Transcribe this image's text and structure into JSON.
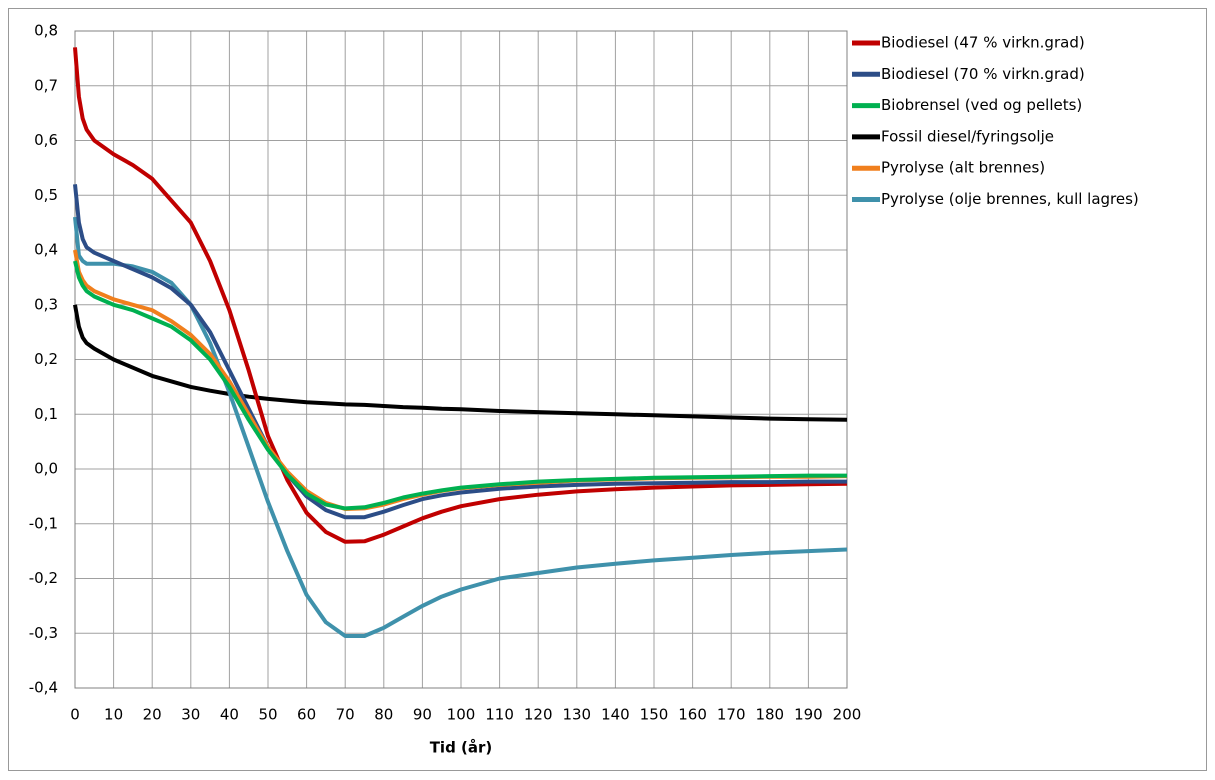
{
  "chart_data": {
    "type": "line",
    "x_label": "Tid (år)",
    "x": [
      0,
      1,
      2,
      3,
      5,
      10,
      15,
      20,
      25,
      30,
      35,
      40,
      45,
      50,
      55,
      60,
      65,
      70,
      75,
      80,
      85,
      90,
      95,
      100,
      110,
      120,
      130,
      140,
      150,
      160,
      170,
      180,
      190,
      200
    ],
    "xlim": [
      0,
      200
    ],
    "xticks": [
      0,
      10,
      20,
      30,
      40,
      50,
      60,
      70,
      80,
      90,
      100,
      110,
      120,
      130,
      140,
      150,
      160,
      170,
      180,
      190,
      200
    ],
    "ylim": [
      -0.4,
      0.8
    ],
    "yticks": [
      {
        "value": -0.4,
        "label": "-0,4"
      },
      {
        "value": -0.3,
        "label": "-0,3"
      },
      {
        "value": -0.2,
        "label": "-0,2"
      },
      {
        "value": -0.1,
        "label": "-0,1"
      },
      {
        "value": 0,
        "label": "0,0"
      },
      {
        "value": 0.1,
        "label": "0,1"
      },
      {
        "value": 0.2,
        "label": "0,2"
      },
      {
        "value": 0.3,
        "label": "0,3"
      },
      {
        "value": 0.4,
        "label": "0,4"
      },
      {
        "value": 0.5,
        "label": "0,5"
      },
      {
        "value": 0.6,
        "label": "0,6"
      },
      {
        "value": 0.7,
        "label": "0,7"
      },
      {
        "value": 0.8,
        "label": "0,8"
      }
    ],
    "grid": true,
    "legend": "right",
    "series": [
      {
        "name": "Biodiesel (47 % virkn.grad)",
        "color": "#c00000",
        "values": [
          0.77,
          0.68,
          0.64,
          0.62,
          0.6,
          0.575,
          0.555,
          0.53,
          0.49,
          0.45,
          0.38,
          0.29,
          0.18,
          0.06,
          -0.02,
          -0.08,
          -0.115,
          -0.133,
          -0.132,
          -0.12,
          -0.105,
          -0.09,
          -0.078,
          -0.068,
          -0.055,
          -0.047,
          -0.041,
          -0.037,
          -0.034,
          -0.032,
          -0.03,
          -0.029,
          -0.028,
          -0.027
        ]
      },
      {
        "name": "Biodiesel (70 % virkn.grad)",
        "color": "#2c4d87",
        "values": [
          0.52,
          0.45,
          0.42,
          0.405,
          0.395,
          0.38,
          0.365,
          0.35,
          0.33,
          0.3,
          0.25,
          0.18,
          0.11,
          0.04,
          -0.01,
          -0.05,
          -0.075,
          -0.088,
          -0.088,
          -0.078,
          -0.066,
          -0.055,
          -0.048,
          -0.043,
          -0.036,
          -0.032,
          -0.029,
          -0.027,
          -0.026,
          -0.025,
          -0.024,
          -0.024,
          -0.023,
          -0.023
        ]
      },
      {
        "name": "Biobrensel (ved og pellets)",
        "color": "#00b050",
        "values": [
          0.38,
          0.35,
          0.335,
          0.325,
          0.315,
          0.3,
          0.29,
          0.275,
          0.26,
          0.235,
          0.2,
          0.15,
          0.09,
          0.035,
          -0.01,
          -0.045,
          -0.065,
          -0.072,
          -0.07,
          -0.062,
          -0.052,
          -0.045,
          -0.039,
          -0.034,
          -0.028,
          -0.023,
          -0.02,
          -0.018,
          -0.016,
          -0.015,
          -0.014,
          -0.013,
          -0.012,
          -0.012
        ]
      },
      {
        "name": "Fossil diesel/fyringsolje",
        "color": "#000000",
        "values": [
          0.3,
          0.26,
          0.24,
          0.23,
          0.22,
          0.2,
          0.185,
          0.17,
          0.16,
          0.15,
          0.143,
          0.137,
          0.132,
          0.128,
          0.125,
          0.122,
          0.12,
          0.118,
          0.117,
          0.115,
          0.113,
          0.112,
          0.11,
          0.109,
          0.106,
          0.104,
          0.102,
          0.1,
          0.098,
          0.096,
          0.094,
          0.092,
          0.091,
          0.09
        ]
      },
      {
        "name": "Pyrolyse (alt brennes)",
        "color": "#f07f1d",
        "values": [
          0.4,
          0.36,
          0.345,
          0.335,
          0.325,
          0.31,
          0.3,
          0.29,
          0.27,
          0.245,
          0.21,
          0.16,
          0.1,
          0.04,
          -0.005,
          -0.04,
          -0.062,
          -0.073,
          -0.072,
          -0.065,
          -0.055,
          -0.047,
          -0.04,
          -0.035,
          -0.029,
          -0.025,
          -0.021,
          -0.019,
          -0.017,
          -0.016,
          -0.015,
          -0.014,
          -0.014,
          -0.013
        ]
      },
      {
        "name": "Pyrolyse (olje brennes, kull lagres)",
        "color": "#3f91ab",
        "values": [
          0.46,
          0.39,
          0.38,
          0.375,
          0.375,
          0.375,
          0.37,
          0.36,
          0.34,
          0.3,
          0.23,
          0.14,
          0.04,
          -0.06,
          -0.15,
          -0.23,
          -0.28,
          -0.305,
          -0.305,
          -0.29,
          -0.27,
          -0.25,
          -0.233,
          -0.22,
          -0.2,
          -0.19,
          -0.18,
          -0.173,
          -0.167,
          -0.162,
          -0.157,
          -0.153,
          -0.15,
          -0.147
        ]
      }
    ]
  }
}
